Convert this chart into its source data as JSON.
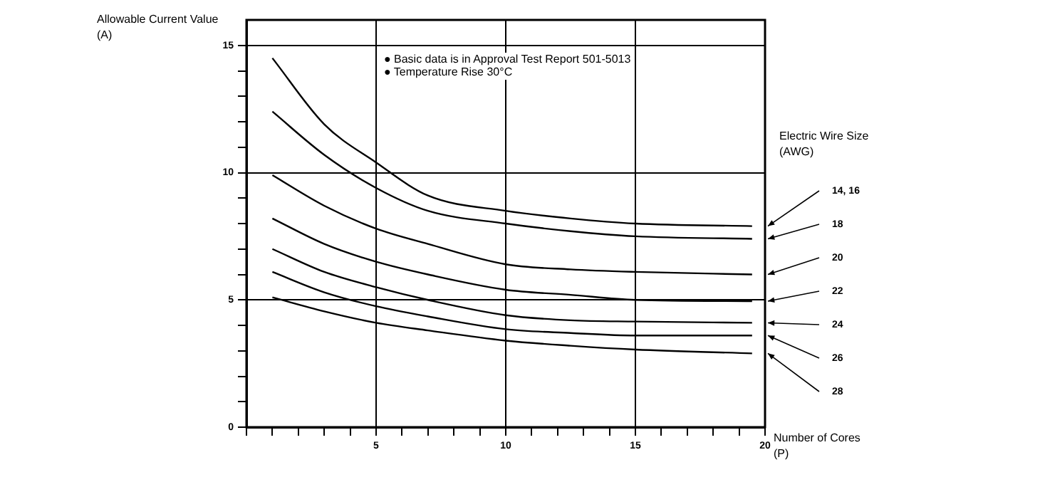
{
  "chart_data": {
    "type": "line",
    "xlabel": "Number of Cores (P)",
    "ylabel": "Allowable Current Value (A)",
    "legend_title": "Electric Wire Size (AWG)",
    "annotations": [
      "● Basic data is in Approval Test Report 501-5013",
      "● Temperature Rise 30°C"
    ],
    "x": [
      1,
      3,
      5,
      7,
      10,
      12.5,
      15,
      19.5
    ],
    "series": [
      {
        "name": "14, 16",
        "color": "#000000",
        "values": [
          14.5,
          11.9,
          10.4,
          9.1,
          8.5,
          8.2,
          8.0,
          7.9
        ]
      },
      {
        "name": "18",
        "color": "#000000",
        "values": [
          12.4,
          10.7,
          9.4,
          8.5,
          8.0,
          7.7,
          7.5,
          7.4
        ]
      },
      {
        "name": "20",
        "color": "#000000",
        "values": [
          9.9,
          8.7,
          7.8,
          7.2,
          6.4,
          6.2,
          6.1,
          6.0
        ]
      },
      {
        "name": "22",
        "color": "#000000",
        "values": [
          8.2,
          7.2,
          6.5,
          6.0,
          5.4,
          5.2,
          5.0,
          4.95
        ]
      },
      {
        "name": "24",
        "color": "#000000",
        "values": [
          7.0,
          6.1,
          5.5,
          5.0,
          4.4,
          4.2,
          4.15,
          4.1
        ]
      },
      {
        "name": "26",
        "color": "#000000",
        "values": [
          6.1,
          5.3,
          4.75,
          4.35,
          3.85,
          3.7,
          3.6,
          3.6
        ]
      },
      {
        "name": "28",
        "color": "#000000",
        "values": [
          5.1,
          4.55,
          4.1,
          3.8,
          3.4,
          3.2,
          3.05,
          2.9
        ]
      }
    ],
    "xlim": [
      0,
      20
    ],
    "xticks": [
      {
        "value": 0,
        "label": null
      },
      {
        "value": 1,
        "label": null
      },
      {
        "value": 2,
        "label": null
      },
      {
        "value": 3,
        "label": null
      },
      {
        "value": 4,
        "label": null
      },
      5,
      {
        "value": 6,
        "label": null
      },
      {
        "value": 7,
        "label": null
      },
      {
        "value": 8,
        "label": null
      },
      {
        "value": 9,
        "label": null
      },
      10,
      {
        "value": 11,
        "label": null
      },
      {
        "value": 12,
        "label": null
      },
      {
        "value": 13,
        "label": null
      },
      {
        "value": 14,
        "label": null
      },
      15,
      {
        "value": 16,
        "label": null
      },
      {
        "value": 17,
        "label": null
      },
      {
        "value": 18,
        "label": null
      },
      {
        "value": 19,
        "label": null
      },
      20
    ],
    "ylim": [
      0,
      16
    ],
    "yticks": [
      0,
      {
        "value": 1,
        "label": null
      },
      {
        "value": 2,
        "label": null
      },
      {
        "value": 3,
        "label": null
      },
      {
        "value": 4,
        "label": null
      },
      5,
      {
        "value": 6,
        "label": null
      },
      {
        "value": 7,
        "label": null
      },
      {
        "value": 8,
        "label": null
      },
      {
        "value": 9,
        "label": null
      },
      10,
      {
        "value": 11,
        "label": null
      },
      {
        "value": 12,
        "label": null
      },
      {
        "value": 13,
        "label": null
      },
      {
        "value": 14,
        "label": null
      },
      15
    ],
    "grid": true,
    "legend": false,
    "marker": "none",
    "line_style": "solid"
  }
}
